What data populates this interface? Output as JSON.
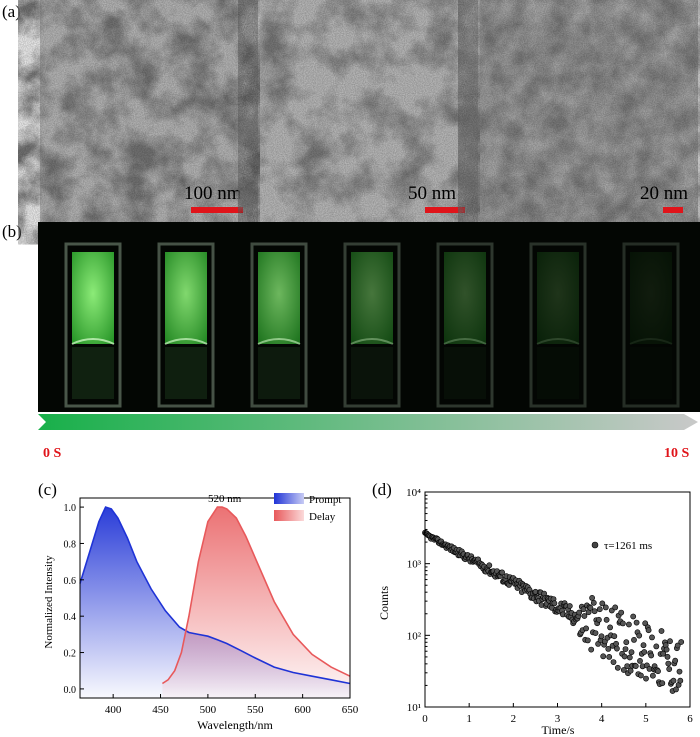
{
  "panels": {
    "a": "(a)",
    "b": "(b)",
    "c": "(c)",
    "d": "(d)"
  },
  "tem": {
    "scales": [
      "100 nm",
      "50 nm",
      "20 nm"
    ]
  },
  "photo": {
    "cuvette_count": 7,
    "brightness": [
      1.0,
      0.92,
      0.78,
      0.5,
      0.35,
      0.22,
      0.12
    ]
  },
  "arrow": {
    "start": "0 S",
    "end": "10 S",
    "start_color": "#18b04a",
    "end_color": "#c9c9c9"
  },
  "colors": {
    "prompt": "#1f33d6",
    "delay": "#e8595b",
    "scale_bar": "#e0141a"
  },
  "chart_data": [
    {
      "type": "area",
      "panel": "(c)",
      "xlabel": "Wavelength/nm",
      "ylabel": "Normalized Intensity",
      "xlim": [
        365,
        650
      ],
      "ylim": [
        -0.05,
        1.05
      ],
      "xticks": [
        400,
        450,
        500,
        550,
        600,
        650
      ],
      "yticks": [
        0.0,
        0.2,
        0.4,
        0.6,
        0.8,
        1.0
      ],
      "annotation": "520 nm",
      "legend_position": "top-right",
      "series": [
        {
          "name": "Prompt",
          "x": [
            365,
            375,
            385,
            392,
            398,
            405,
            415,
            425,
            440,
            455,
            470,
            480,
            490,
            500,
            510,
            520,
            535,
            550,
            570,
            590,
            610,
            630,
            650
          ],
          "y": [
            0.58,
            0.75,
            0.92,
            1.0,
            0.99,
            0.94,
            0.83,
            0.7,
            0.55,
            0.43,
            0.34,
            0.31,
            0.3,
            0.29,
            0.27,
            0.25,
            0.21,
            0.17,
            0.12,
            0.09,
            0.07,
            0.05,
            0.03
          ]
        },
        {
          "name": "Delay",
          "x": [
            452,
            458,
            465,
            472,
            480,
            490,
            500,
            510,
            515,
            520,
            530,
            540,
            555,
            570,
            590,
            610,
            630,
            650
          ],
          "y": [
            0.03,
            0.05,
            0.1,
            0.2,
            0.4,
            0.7,
            0.92,
            1.0,
            1.0,
            0.99,
            0.94,
            0.84,
            0.66,
            0.48,
            0.3,
            0.19,
            0.12,
            0.07
          ]
        }
      ]
    },
    {
      "type": "scatter",
      "panel": "(d)",
      "xlabel": "Time/s",
      "ylabel": "Counts",
      "xlim": [
        0,
        6
      ],
      "ylim_log10": [
        1,
        4
      ],
      "yscale": "log",
      "xticks": [
        0,
        1,
        2,
        3,
        4,
        5,
        6
      ],
      "ytick_labels": [
        "10¹",
        "10²",
        "10³",
        "10⁴"
      ],
      "annotation": "τ=1261 ms",
      "decay": {
        "initial_counts": 2600,
        "tau_s": 1.261,
        "background": 9.5,
        "duration_s": 5.8,
        "points": 300
      }
    }
  ]
}
